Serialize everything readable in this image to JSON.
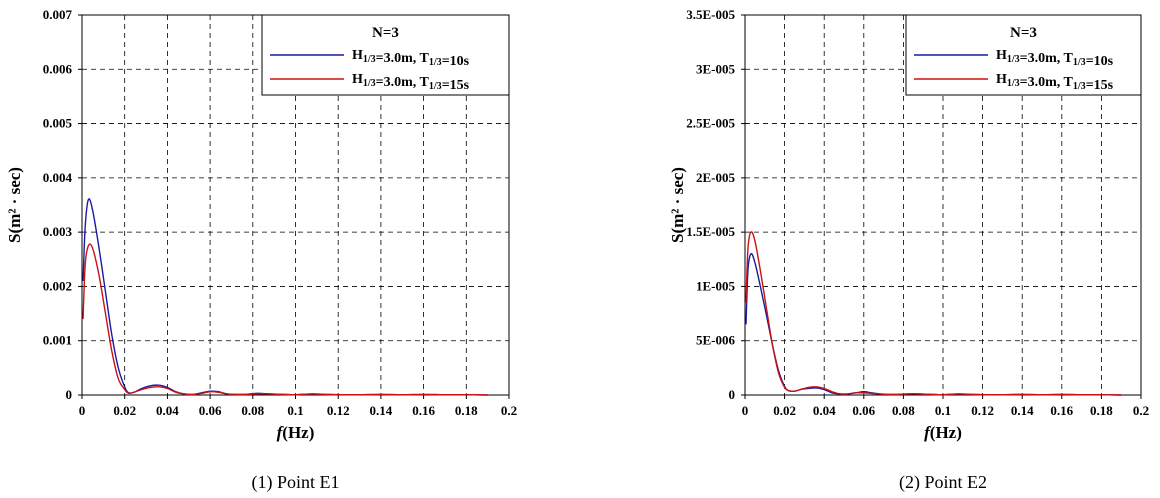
{
  "chart_data": [
    {
      "type": "line",
      "caption": "(1) Point E1",
      "xlabel": "f(Hz)",
      "ylabel": "S(m² · sec)",
      "xlim": [
        0,
        0.2
      ],
      "ylim": [
        0,
        0.007
      ],
      "xticks": [
        "0",
        "0.02",
        "0.04",
        "0.06",
        "0.08",
        "0.1",
        "0.12",
        "0.14",
        "0.16",
        "0.18",
        "0.2"
      ],
      "yticks": [
        "0",
        "0.001",
        "0.002",
        "0.003",
        "0.004",
        "0.005",
        "0.006",
        "0.007"
      ],
      "grid": true,
      "legend_position": "top-right",
      "legend_title": "N=3",
      "series": [
        {
          "name": "H1/3=3.0m, T1/3=10s",
          "color": "#1a1aa6",
          "x": [
            0.0005,
            0.0015,
            0.003,
            0.005,
            0.008,
            0.011,
            0.014,
            0.017,
            0.02,
            0.022,
            0.025,
            0.028,
            0.032,
            0.036,
            0.04,
            0.044,
            0.048,
            0.052,
            0.056,
            0.06,
            0.064,
            0.068,
            0.075,
            0.082,
            0.088,
            0.095,
            0.1,
            0.108,
            0.115,
            0.122,
            0.13,
            0.14,
            0.15,
            0.16,
            0.17,
            0.18,
            0.19
          ],
          "y": [
            0.0021,
            0.0031,
            0.0036,
            0.0034,
            0.0027,
            0.0019,
            0.0011,
            0.0005,
            0.00015,
            4e-05,
            6e-05,
            0.00012,
            0.00017,
            0.00018,
            0.00014,
            6e-05,
            2e-05,
            1e-05,
            4e-05,
            7e-05,
            6e-05,
            2e-05,
            1e-05,
            3e-05,
            2e-05,
            1e-05,
            5e-06,
            2e-05,
            1e-05,
            5e-06,
            5e-06,
            1e-05,
            5e-06,
            1e-05,
            5e-06,
            5e-06,
            0.0
          ]
        },
        {
          "name": "H1/3=3.0m, T1/3=15s",
          "color": "#cc1111",
          "x": [
            0.0005,
            0.0015,
            0.003,
            0.005,
            0.008,
            0.011,
            0.014,
            0.017,
            0.02,
            0.022,
            0.025,
            0.028,
            0.032,
            0.036,
            0.04,
            0.044,
            0.048,
            0.052,
            0.056,
            0.06,
            0.064,
            0.068,
            0.075,
            0.082,
            0.088,
            0.095,
            0.1,
            0.108,
            0.115,
            0.122,
            0.13,
            0.14,
            0.15,
            0.16,
            0.17,
            0.18,
            0.19
          ],
          "y": [
            0.0014,
            0.0024,
            0.00275,
            0.0027,
            0.0022,
            0.0015,
            0.0008,
            0.0003,
            0.0001,
            3e-05,
            6e-05,
            0.0001,
            0.00014,
            0.00015,
            0.00012,
            5e-05,
            2e-05,
            1e-05,
            3e-05,
            6e-05,
            5e-05,
            2e-05,
            1e-05,
            2e-05,
            2e-05,
            1e-05,
            5e-06,
            2e-05,
            1e-05,
            5e-06,
            5e-06,
            1e-05,
            5e-06,
            1e-05,
            5e-06,
            5e-06,
            0.0
          ]
        }
      ]
    },
    {
      "type": "line",
      "caption": "(2) Point E2",
      "xlabel": "f(Hz)",
      "ylabel": "S(m² · sec)",
      "xlim": [
        0,
        0.2
      ],
      "ylim": [
        0,
        3.5e-05
      ],
      "xticks": [
        "0",
        "0.02",
        "0.04",
        "0.06",
        "0.08",
        "0.1",
        "0.12",
        "0.14",
        "0.16",
        "0.18",
        "0.2"
      ],
      "yticks": [
        "0",
        "5E-006",
        "1E-005",
        "1.5E-005",
        "2E-005",
        "2.5E-005",
        "3E-005",
        "3.5E-005"
      ],
      "grid": true,
      "legend_position": "top-right",
      "legend_title": "N=3",
      "series": [
        {
          "name": "H1/3=3.0m, T1/3=10s",
          "color": "#1a1aa6",
          "x": [
            0.0005,
            0.0015,
            0.003,
            0.005,
            0.008,
            0.011,
            0.014,
            0.017,
            0.02,
            0.022,
            0.025,
            0.028,
            0.032,
            0.036,
            0.04,
            0.044,
            0.048,
            0.052,
            0.056,
            0.06,
            0.064,
            0.068,
            0.075,
            0.082,
            0.088,
            0.095,
            0.1,
            0.108,
            0.115,
            0.122,
            0.13,
            0.14,
            0.15,
            0.16,
            0.17,
            0.18,
            0.19
          ],
          "y": [
            6.5e-06,
            1.15e-05,
            1.3e-05,
            1.22e-05,
            9.8e-06,
            7.2e-06,
            4.5e-06,
            2.2e-06,
            8e-07,
            4e-07,
            3.5e-07,
            5e-07,
            6e-07,
            6.5e-07,
            5e-07,
            2e-07,
            1e-07,
            1e-07,
            2e-07,
            3e-07,
            2e-07,
            1e-07,
            5e-08,
            1e-07,
            1e-07,
            5e-08,
            3e-08,
            1e-07,
            5e-08,
            3e-08,
            3e-08,
            5e-08,
            3e-08,
            5e-08,
            3e-08,
            3e-08,
            0.0
          ]
        },
        {
          "name": "H1/3=3.0m, T1/3=15s",
          "color": "#cc1111",
          "x": [
            0.0005,
            0.0015,
            0.003,
            0.005,
            0.008,
            0.011,
            0.014,
            0.017,
            0.02,
            0.022,
            0.025,
            0.028,
            0.032,
            0.036,
            0.04,
            0.044,
            0.048,
            0.052,
            0.056,
            0.06,
            0.064,
            0.068,
            0.075,
            0.082,
            0.088,
            0.095,
            0.1,
            0.108,
            0.115,
            0.122,
            0.13,
            0.14,
            0.15,
            0.16,
            0.17,
            0.18,
            0.19
          ],
          "y": [
            8.5e-06,
            1.35e-05,
            1.5e-05,
            1.42e-05,
            1.12e-05,
            7.8e-06,
            4.5e-06,
            2e-06,
            7e-07,
            4e-07,
            3.5e-07,
            5e-07,
            7e-07,
            7.5e-07,
            6e-07,
            3e-07,
            1e-07,
            1e-07,
            2e-07,
            2e-07,
            1.5e-07,
            1e-07,
            5e-08,
            1e-07,
            1e-07,
            5e-08,
            3e-08,
            1e-07,
            5e-08,
            3e-08,
            3e-08,
            5e-08,
            3e-08,
            5e-08,
            3e-08,
            3e-08,
            0.0
          ]
        }
      ]
    }
  ]
}
